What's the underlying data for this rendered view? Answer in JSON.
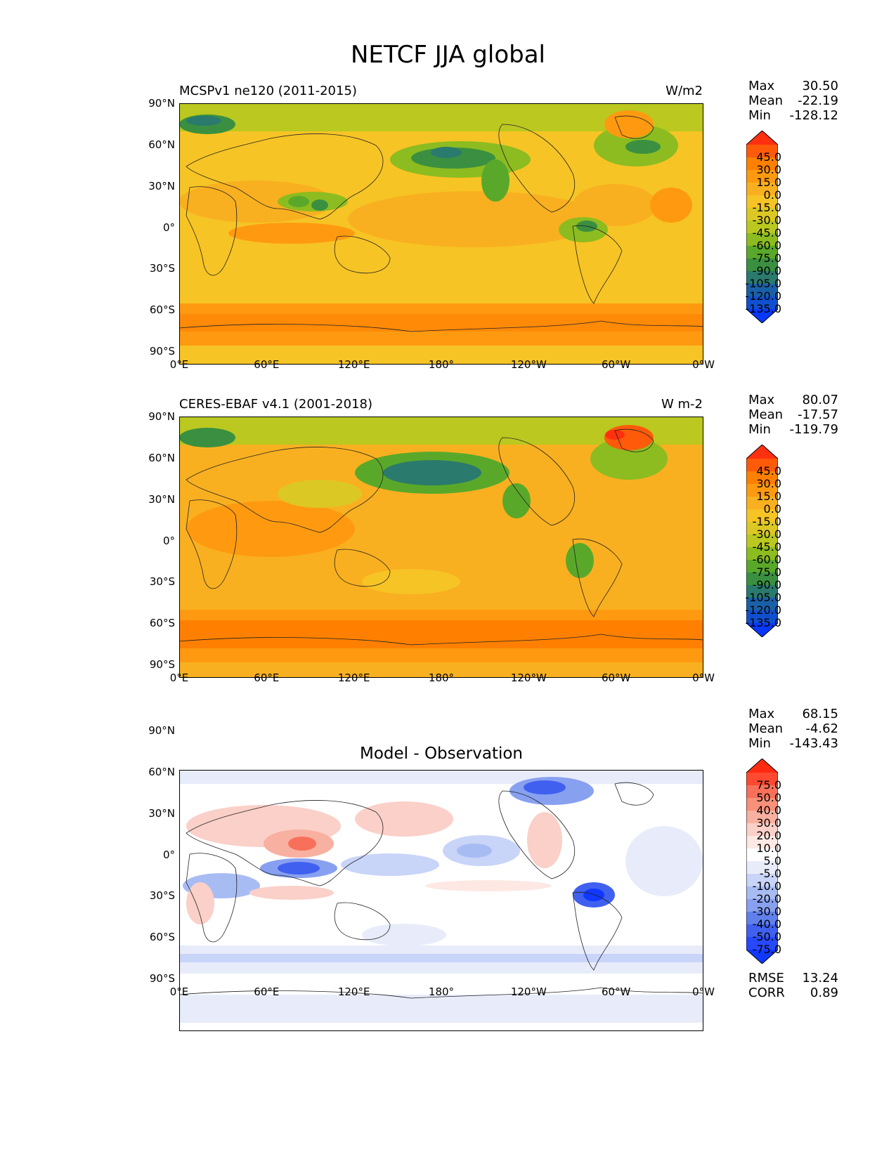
{
  "figure": {
    "title": "NETCF JJA global"
  },
  "axes": {
    "lat_labels": [
      "90°N",
      "60°N",
      "30°N",
      "0°",
      "30°S",
      "60°S",
      "90°S"
    ],
    "lon_labels": [
      "0°E",
      "60°E",
      "120°E",
      "180°",
      "120°W",
      "60°W",
      "0°W"
    ]
  },
  "panels": [
    {
      "left_title": "MCSPv1 ne120 (2011-2015)",
      "right_title": "W/m2",
      "center_title": "",
      "stats": {
        "max_label": "Max",
        "max": "30.50",
        "mean_label": "Mean",
        "mean": "-22.19",
        "min_label": "Min",
        "min": "-128.12"
      },
      "colorbar": {
        "labels": [
          "45.0",
          "30.0",
          "15.0",
          "0.0",
          "-15.0",
          "-30.0",
          "-45.0",
          "-60.0",
          "-75.0",
          "-90.0",
          "-105.0",
          "-120.0",
          "-135.0"
        ],
        "colors": [
          "#ff3010",
          "#ff5a0a",
          "#ff8000",
          "#ff9a10",
          "#f9b020",
          "#f6c425",
          "#dcc825",
          "#bac820",
          "#8cbc20",
          "#5aa82a",
          "#3a9040",
          "#2a7a6e",
          "#1a60a8",
          "#1050d0",
          "#0838ff"
        ]
      }
    },
    {
      "left_title": "CERES-EBAF v4.1 (2001-2018)",
      "right_title": "W m-2",
      "center_title": "",
      "stats": {
        "max_label": "Max",
        "max": "80.07",
        "mean_label": "Mean",
        "mean": "-17.57",
        "min_label": "Min",
        "min": "-119.79"
      },
      "colorbar": {
        "labels": [
          "45.0",
          "30.0",
          "15.0",
          "0.0",
          "-15.0",
          "-30.0",
          "-45.0",
          "-60.0",
          "-75.0",
          "-90.0",
          "-105.0",
          "-120.0",
          "-135.0"
        ],
        "colors": [
          "#ff3010",
          "#ff5a0a",
          "#ff8000",
          "#ff9a10",
          "#f9b020",
          "#f6c425",
          "#dcc825",
          "#bac820",
          "#8cbc20",
          "#5aa82a",
          "#3a9040",
          "#2a7a6e",
          "#1a60a8",
          "#1050d0",
          "#0838ff"
        ]
      }
    },
    {
      "left_title": "",
      "right_title": "",
      "center_title": "Model - Observation",
      "stats": {
        "max_label": "Max",
        "max": "68.15",
        "mean_label": "Mean",
        "mean": "-4.62",
        "min_label": "Min",
        "min": "-143.43"
      },
      "colorbar": {
        "labels": [
          "75.0",
          "50.0",
          "40.0",
          "30.0",
          "20.0",
          "10.0",
          "5.0",
          "-5.0",
          "-10.0",
          "-20.0",
          "-30.0",
          "-40.0",
          "-50.0",
          "-75.0"
        ],
        "colors": [
          "#ff2a10",
          "#ff4a30",
          "#f8705a",
          "#f8907a",
          "#f8b0a0",
          "#fad0c8",
          "#fde8e4",
          "#ffffff",
          "#e8ecfa",
          "#c8d4f8",
          "#a8bcf4",
          "#88a0f0",
          "#6080ec",
          "#4060f0",
          "#2848ff",
          "#1038ff"
        ]
      },
      "rmse_label": "RMSE",
      "rmse": "13.24",
      "corr_label": "CORR",
      "corr": "0.89"
    }
  ]
}
